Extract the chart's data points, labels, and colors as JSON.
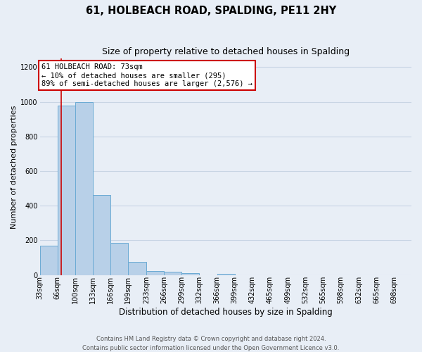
{
  "title": "61, HOLBEACH ROAD, SPALDING, PE11 2HY",
  "subtitle": "Size of property relative to detached houses in Spalding",
  "xlabel": "Distribution of detached houses by size in Spalding",
  "ylabel": "Number of detached properties",
  "bar_labels": [
    "33sqm",
    "66sqm",
    "100sqm",
    "133sqm",
    "166sqm",
    "199sqm",
    "233sqm",
    "266sqm",
    "299sqm",
    "332sqm",
    "366sqm",
    "399sqm",
    "432sqm",
    "465sqm",
    "499sqm",
    "532sqm",
    "565sqm",
    "598sqm",
    "632sqm",
    "665sqm",
    "698sqm"
  ],
  "bar_values": [
    170,
    980,
    1000,
    460,
    185,
    75,
    22,
    18,
    10,
    0,
    8,
    0,
    0,
    0,
    0,
    0,
    0,
    0,
    0,
    0,
    0
  ],
  "bar_color": "#b8d0e8",
  "bar_edge_color": "#6aaad4",
  "grid_color": "#c8d4e4",
  "background_color": "#e8eef6",
  "annotation_line1": "61 HOLBEACH ROAD: 73sqm",
  "annotation_line2": "← 10% of detached houses are smaller (295)",
  "annotation_line3": "89% of semi-detached houses are larger (2,576) →",
  "annotation_box_color": "#ffffff",
  "annotation_border_color": "#cc0000",
  "red_line_x": 73,
  "bin_edges": [
    33,
    66,
    100,
    133,
    166,
    199,
    233,
    266,
    299,
    332,
    366,
    399,
    432,
    465,
    499,
    532,
    565,
    598,
    632,
    665,
    698,
    731
  ],
  "ylim": [
    0,
    1250
  ],
  "yticks": [
    0,
    200,
    400,
    600,
    800,
    1000,
    1200
  ],
  "footer_line1": "Contains HM Land Registry data © Crown copyright and database right 2024.",
  "footer_line2": "Contains public sector information licensed under the Open Government Licence v3.0.",
  "title_fontsize": 10.5,
  "subtitle_fontsize": 9,
  "xlabel_fontsize": 8.5,
  "ylabel_fontsize": 8,
  "tick_fontsize": 7,
  "footer_fontsize": 6,
  "annotation_fontsize": 7.5
}
